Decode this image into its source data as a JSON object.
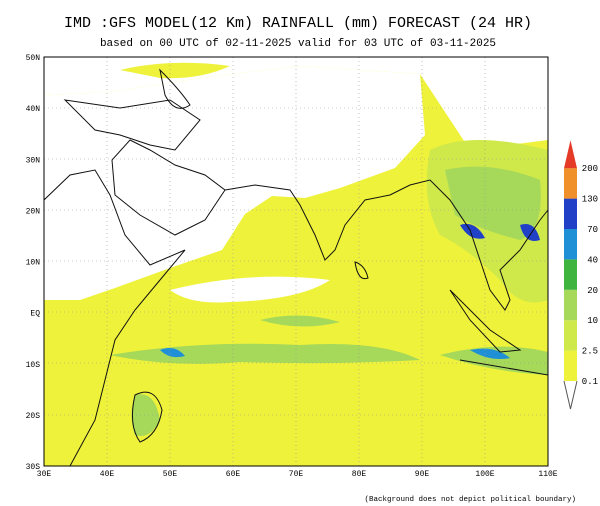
{
  "header": {
    "title": "IMD :GFS MODEL(12 Km) RAINFALL (mm) FORECAST (24 HR)",
    "subtitle": "based on 00 UTC of 02-11-2025 valid for 03 UTC of 03-11-2025"
  },
  "map": {
    "lat_labels": [
      "50N",
      "40N",
      "30N",
      "20N",
      "10N",
      "EQ",
      "10S",
      "20S",
      "30S"
    ],
    "lon_labels": [
      "30E",
      "40E",
      "50E",
      "60E",
      "70E",
      "80E",
      "90E",
      "100E",
      "110E"
    ]
  },
  "colorbar": {
    "levels": [
      0.1,
      2.5,
      10,
      20,
      40,
      70,
      130,
      200
    ],
    "colors": [
      "#eef23a",
      "#cfe84a",
      "#a6d85a",
      "#3fb43f",
      "#1f8fd6",
      "#2040c8",
      "#f0902a",
      "#e63a28"
    ]
  },
  "footnote": "(Background does not depict political boundary)"
}
